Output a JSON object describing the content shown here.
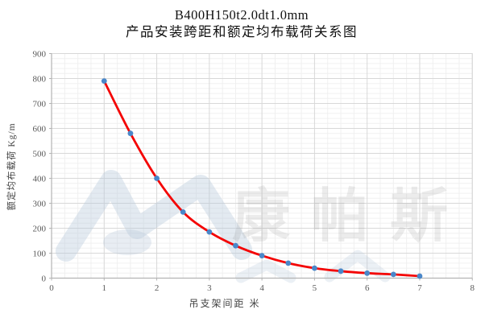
{
  "title": {
    "line1": "B400H150t2.0dt1.0mm",
    "line2": "产品安装跨距和额定均布载荷关系图"
  },
  "watermark": {
    "text": "康帕斯",
    "logo": "mountain-peaks-logo"
  },
  "chart_data": {
    "type": "line",
    "title": "B400H150t2.0dt1.0mm 产品安装跨距和额定均布载荷关系图",
    "xlabel": "吊支架间距  米",
    "ylabel": "额定均布载荷 Kg/m",
    "x": [
      1,
      1.5,
      2,
      2.5,
      3,
      3.5,
      4,
      4.5,
      5,
      5.5,
      6,
      6.5,
      7
    ],
    "series": [
      {
        "name": "额定均布载荷",
        "values": [
          790,
          580,
          400,
          265,
          185,
          130,
          90,
          60,
          40,
          28,
          20,
          15,
          8
        ]
      }
    ],
    "xlim": [
      0,
      8
    ],
    "ylim": [
      0,
      900
    ],
    "x_major_ticks": [
      "0",
      "1",
      "2",
      "3",
      "4",
      "5",
      "6",
      "7",
      "8"
    ],
    "x_major_tick_values": [
      0,
      1,
      2,
      3,
      4,
      5,
      6,
      7,
      8
    ],
    "y_major_ticks": [
      "0",
      "100",
      "200",
      "300",
      "400",
      "500",
      "600",
      "700",
      "800",
      "900"
    ],
    "y_major_tick_values": [
      0,
      100,
      200,
      300,
      400,
      500,
      600,
      700,
      800,
      900
    ],
    "x_minor_step": 0.25,
    "y_minor_step": 20,
    "grid": "major+minor",
    "legend": "none",
    "line_color": "#f40404",
    "marker_color": "#4a87c9",
    "marker_style": "circle",
    "grid_major_color": "#d8d8d8",
    "grid_minor_color": "#f0f0f0",
    "axis_line_color": "#b3b3b3",
    "tick_label_color": "#595959",
    "watermark_logo_color": "#b6c8da",
    "watermark_text_color": "#6e6e6e"
  }
}
